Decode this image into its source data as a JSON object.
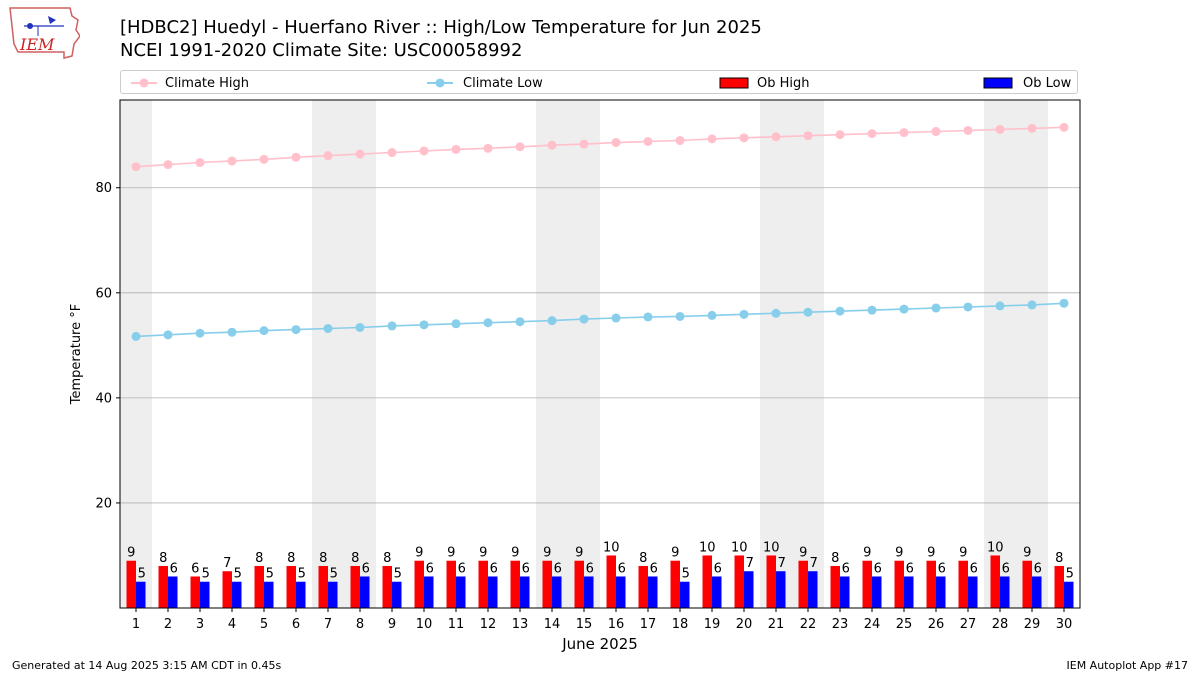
{
  "header": {
    "title_line1": "[HDBC2] Huedyl - Huerfano River :: High/Low Temperature for Jun 2025",
    "title_line2": "NCEI 1991-2020 Climate Site: USC00058992",
    "logo_text": "IEM"
  },
  "legend": {
    "climate_high": "Climate High",
    "climate_low": "Climate Low",
    "ob_high": "Ob High",
    "ob_low": "Ob Low"
  },
  "colors": {
    "climate_high": "#ffc0cb",
    "climate_low": "#87ceeb",
    "ob_high": "#ff0000",
    "ob_low": "#0000ff",
    "weekend_shade": "#eeeeee"
  },
  "chart_data": {
    "type": "bar",
    "xlabel": "June 2025",
    "ylabel": "Temperature °F",
    "ylim": [
      0,
      96.7
    ],
    "yticks": [
      20,
      40,
      60,
      80
    ],
    "grid": "horizontal",
    "legend_position": "top",
    "x": [
      1,
      2,
      3,
      4,
      5,
      6,
      7,
      8,
      9,
      10,
      11,
      12,
      13,
      14,
      15,
      16,
      17,
      18,
      19,
      20,
      21,
      22,
      23,
      24,
      25,
      26,
      27,
      28,
      29,
      30
    ],
    "shaded_days": [
      1,
      7,
      8,
      14,
      15,
      21,
      22,
      28,
      29
    ],
    "series": [
      {
        "name": "Ob High",
        "kind": "bar",
        "values": [
          9,
          8,
          6,
          7,
          8,
          8,
          8,
          8,
          8,
          9,
          9,
          9,
          9,
          9,
          9,
          10,
          8,
          9,
          10,
          10,
          10,
          9,
          8,
          9,
          9,
          9,
          9,
          10,
          9,
          8
        ],
        "labels": [
          "9",
          "8",
          "6",
          "7",
          "8",
          "8",
          "8",
          "8",
          "8",
          "9",
          "9",
          "9",
          "9",
          "9",
          "9",
          "10",
          "8",
          "9",
          "10",
          "10",
          "10",
          "9",
          "8",
          "9",
          "9",
          "9",
          "9",
          "10",
          "9",
          "8"
        ]
      },
      {
        "name": "Ob Low",
        "kind": "bar",
        "values": [
          5,
          6,
          5,
          5,
          5,
          5,
          5,
          6,
          5,
          6,
          6,
          6,
          6,
          6,
          6,
          6,
          6,
          5,
          6,
          7,
          7,
          7,
          6,
          6,
          6,
          6,
          6,
          6,
          6,
          5
        ],
        "labels": [
          "5",
          "6",
          "5",
          "5",
          "5",
          "5",
          "5",
          "6",
          "5",
          "6",
          "6",
          "6",
          "6",
          "6",
          "6",
          "6",
          "6",
          "5",
          "6",
          "7",
          "7",
          "7",
          "6",
          "6",
          "6",
          "6",
          "6",
          "6",
          "6",
          "5"
        ]
      },
      {
        "name": "Climate High",
        "kind": "line",
        "values": [
          84.0,
          84.4,
          84.8,
          85.1,
          85.4,
          85.8,
          86.1,
          86.4,
          86.7,
          87.0,
          87.3,
          87.5,
          87.8,
          88.1,
          88.3,
          88.6,
          88.8,
          89.0,
          89.3,
          89.5,
          89.7,
          89.9,
          90.1,
          90.3,
          90.5,
          90.7,
          90.9,
          91.1,
          91.3,
          91.5
        ]
      },
      {
        "name": "Climate Low",
        "kind": "line",
        "values": [
          51.7,
          52.0,
          52.3,
          52.5,
          52.8,
          53.0,
          53.2,
          53.4,
          53.7,
          53.9,
          54.1,
          54.3,
          54.5,
          54.7,
          55.0,
          55.2,
          55.4,
          55.5,
          55.7,
          55.9,
          56.1,
          56.3,
          56.5,
          56.7,
          56.9,
          57.1,
          57.3,
          57.5,
          57.7,
          58.0
        ]
      }
    ]
  },
  "footer": {
    "left": "Generated at 14 Aug 2025 3:15 AM CDT in 0.45s",
    "right": "IEM Autoplot App #17"
  }
}
